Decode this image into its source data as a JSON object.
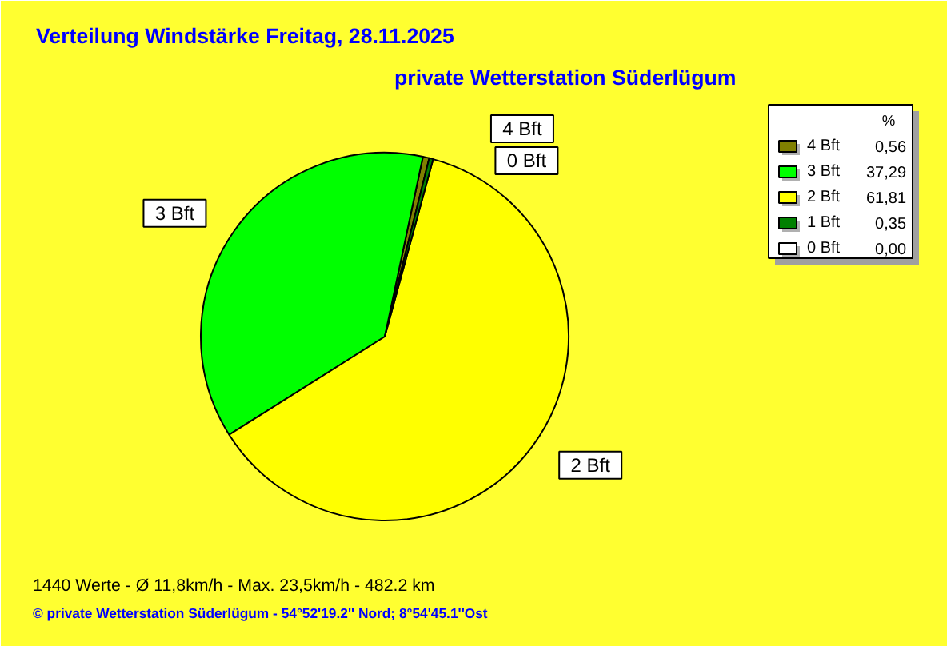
{
  "chart_data": {
    "type": "pie",
    "title": "Verteilung Windstärke  Freitag, 28.11.2025",
    "subtitle": "private Wetterstation Süderlügum",
    "categories": [
      "4 Bft",
      "3 Bft",
      "2 Bft",
      "1 Bft",
      "0 Bft"
    ],
    "values": [
      0.56,
      37.29,
      61.81,
      0.35,
      0.0
    ],
    "colors": [
      "#808000",
      "#00ff00",
      "#ffff00",
      "#008000",
      "#ffffff"
    ],
    "value_labels": [
      "0,56",
      "37,29",
      "61,81",
      "0,35",
      "0,00"
    ],
    "legend_title": "%",
    "legend": "top right",
    "annotations": [
      {
        "text": "4 Bft",
        "x": "4 Bft"
      },
      {
        "text": "0 Bft",
        "x": "0 Bft"
      },
      {
        "text": "3 Bft",
        "x": "3 Bft"
      },
      {
        "text": "2 Bft",
        "x": "2 Bft"
      },
      "1440 Werte   -   Ø 11,8km/h  -  Max. 23,5km/h   -   482.2 km",
      "© private Wetterstation Süderlügum   -   54°52'19.2'' Nord; 8°54'45.1''Ost"
    ]
  }
}
